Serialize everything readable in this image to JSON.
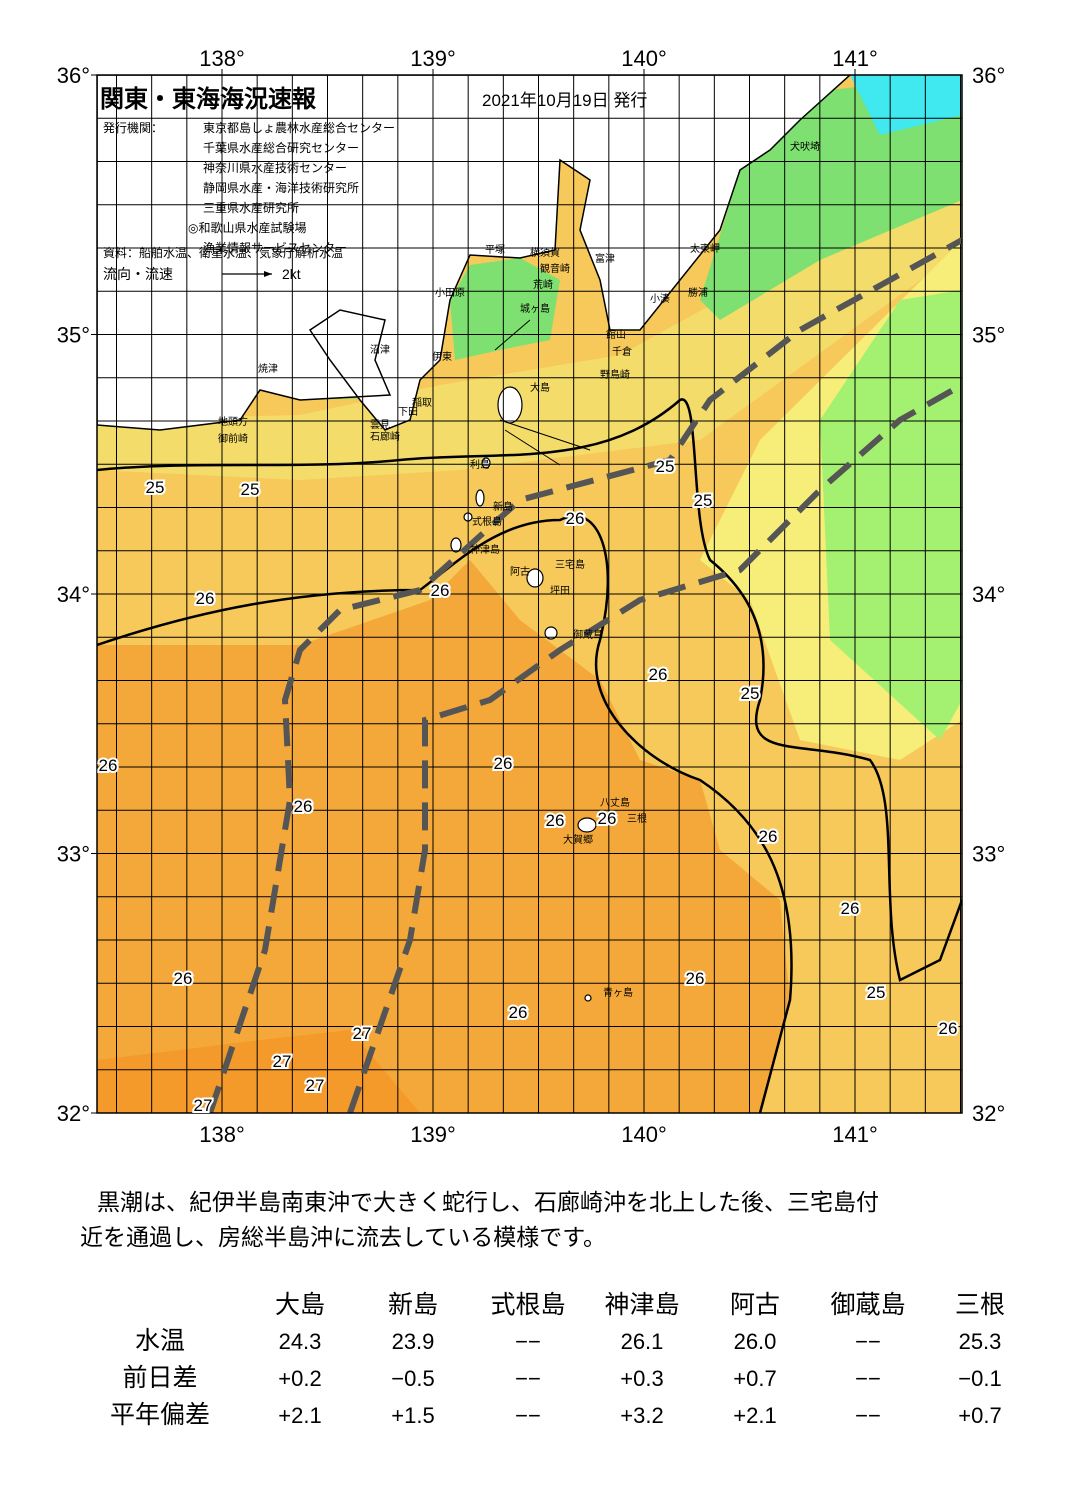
{
  "header": {
    "title": "関東・東海海況速報",
    "date": "2021年10月19日 発行",
    "issuer_label": "発行機関：",
    "issuers": [
      "東京都島しょ農林水産総合センター",
      "千葉県水産総合研究センター",
      "神奈川県水産技術センター",
      "静岡県水産・海洋技術研究所",
      "三重県水産研究所",
      "◎和歌山県水産試験場",
      "漁業情報サービスセンター"
    ],
    "source": "資料：船舶水温、衛星水温、気象庁解析水温",
    "legend_label": "流向・流速",
    "legend_speed": "2kt"
  },
  "map": {
    "lon_ticks": [
      {
        "value": 138,
        "label": "138°"
      },
      {
        "value": 139,
        "label": "139°"
      },
      {
        "value": 140,
        "label": "140°"
      },
      {
        "value": 141,
        "label": "141°"
      }
    ],
    "lat_ticks": [
      {
        "value": 36,
        "label": "36°"
      },
      {
        "value": 35,
        "label": "35°"
      },
      {
        "value": 34,
        "label": "34°"
      },
      {
        "value": 33,
        "label": "33°"
      },
      {
        "value": 32,
        "label": "32°"
      }
    ],
    "places": [
      "犬吠埼",
      "太東岬",
      "小湊",
      "勝浦",
      "富津",
      "館山",
      "千倉",
      "野島崎",
      "横須賀",
      "観音崎",
      "荒崎",
      "城ヶ島",
      "平塚",
      "小田原",
      "沼津",
      "伊東",
      "稲取",
      "下田",
      "雲見",
      "石廊崎",
      "焼津",
      "地頭方",
      "御前崎",
      "大島",
      "利島",
      "新島",
      "式根島",
      "神津島",
      "三宅島",
      "阿古",
      "坪田",
      "御蔵島",
      "八丈島",
      "大賀郷",
      "三根",
      "青ヶ島"
    ],
    "isotherm_labels": [
      25,
      25,
      26,
      26,
      26,
      25,
      25,
      26,
      25,
      26,
      26,
      26,
      26,
      26,
      26,
      26,
      26,
      26,
      25,
      26,
      26,
      27,
      27,
      27,
      27
    ]
  },
  "summary": [
    "黒潮は、紀伊半島南東沖で大きく蛇行し、石廊崎沖を北上した後、三宅島付",
    "近を通過し、房総半島沖に流去している模様です。"
  ],
  "table": {
    "columns": [
      "大島",
      "新島",
      "式根島",
      "神津島",
      "阿古",
      "御蔵島",
      "三根"
    ],
    "rows": [
      [
        "水温",
        "24.3",
        "23.9",
        "−−",
        "26.1",
        "26.0",
        "−−",
        "25.3"
      ],
      [
        "前日差",
        "+0.2",
        "−0.5",
        "−−",
        "+0.3",
        "+0.7",
        "−−",
        "−0.1"
      ],
      [
        "平年偏差",
        "+2.1",
        "+1.5",
        "−−",
        "+3.2",
        "+2.1",
        "−−",
        "+0.7"
      ]
    ]
  }
}
